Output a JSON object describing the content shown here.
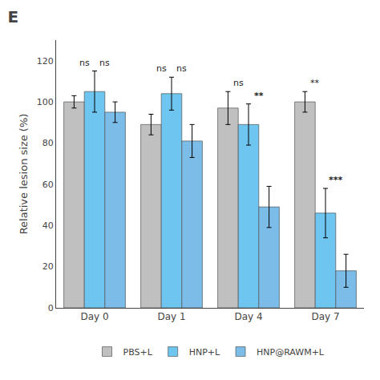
{
  "chart_data": {
    "type": "bar",
    "title": "E",
    "ylabel": "Relative lesion size (%)",
    "categories": [
      "Day 0",
      "Day 1",
      "Day 4",
      "Day 7"
    ],
    "series": [
      {
        "name": "PBS+L",
        "color": "#c0c0c0",
        "values": [
          100,
          89,
          97,
          100
        ],
        "errors": [
          3,
          5,
          8,
          5
        ]
      },
      {
        "name": "HNP+L",
        "color": "#6ec6f0",
        "values": [
          105,
          104,
          89,
          46
        ],
        "errors": [
          10,
          8,
          10,
          12
        ]
      },
      {
        "name": "HNP@RAWM+L",
        "color": "#7bbce8",
        "values": [
          95,
          81,
          49,
          18
        ],
        "errors": [
          5,
          8,
          10,
          8
        ]
      }
    ],
    "annotations": [
      {
        "text": "ns",
        "category": "Day 0",
        "series": "HNP+L"
      },
      {
        "text": "ns",
        "category": "Day 1",
        "series": "HNP+L"
      },
      {
        "text": "ns",
        "category": "Day 4",
        "series": "HNP+L"
      },
      {
        "text": "**",
        "category": "Day 7",
        "series": "HNP+L"
      },
      {
        "text": "ns",
        "category": "Day 0",
        "series": "HNP@RAWM+L"
      },
      {
        "text": "ns",
        "category": "Day 1",
        "series": "HNP@RAWM+L"
      },
      {
        "text": "**",
        "category": "Day 4",
        "series": "HNP@RAWM+L"
      },
      {
        "text": "***",
        "category": "Day 7",
        "series": "HNP@RAWM+L"
      }
    ],
    "ylim": [
      0,
      130
    ],
    "yticks": [
      0,
      20,
      40,
      60,
      80,
      100,
      120
    ],
    "grid": false,
    "legend": "bottom"
  }
}
